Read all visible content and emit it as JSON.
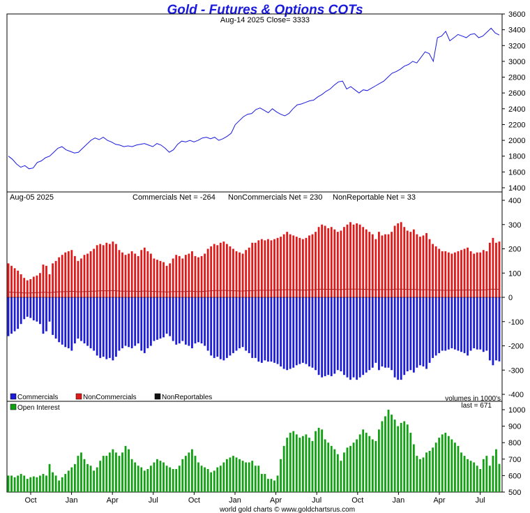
{
  "header": {
    "title": "Gold - Futures & Options COTs",
    "subtitle": "Aug-14  2025   Close= 3333",
    "footer": "world gold charts © www.goldchartsrus.com"
  },
  "colors": {
    "price_line": "#1a1adf",
    "commercials": "#1c1cd8",
    "noncommercials": "#e01818",
    "nonreportables": "#111111",
    "open_interest": "#11a011",
    "nonrep_line": "#b02020"
  },
  "chart_data": [
    {
      "type": "line",
      "panel": "price",
      "ylim": [
        1400,
        3600
      ],
      "y_ticks": [
        "1400",
        "1600",
        "1800",
        "2000",
        "2200",
        "2400",
        "2600",
        "2800",
        "3000",
        "3200",
        "3400",
        "3600"
      ],
      "x_ticks": [
        "Oct",
        "Jan",
        "Apr",
        "Jul",
        "Oct",
        "Jan",
        "Apr",
        "Jul",
        "Oct",
        "Jan",
        "Apr",
        "Jul"
      ],
      "grid": false,
      "series": [
        {
          "values": [
            1800,
            1760,
            1700,
            1660,
            1680,
            1640,
            1650,
            1720,
            1740,
            1780,
            1800,
            1850,
            1900,
            1920,
            1880,
            1860,
            1840,
            1850,
            1900,
            1950,
            2000,
            2030,
            2010,
            2040,
            2000,
            1980,
            1950,
            1940,
            1920,
            1930,
            1920,
            1940,
            1950,
            1960,
            1940,
            1920,
            1960,
            1940,
            1900,
            1850,
            1880,
            1950,
            1990,
            1980,
            2000,
            1980,
            2000,
            2030,
            2040,
            2020,
            2040,
            2000,
            2020,
            2050,
            2090,
            2200,
            2250,
            2300,
            2330,
            2340,
            2390,
            2410,
            2380,
            2350,
            2400,
            2360,
            2330,
            2310,
            2340,
            2400,
            2450,
            2460,
            2480,
            2500,
            2510,
            2550,
            2580,
            2620,
            2650,
            2700,
            2740,
            2750,
            2650,
            2680,
            2640,
            2600,
            2640,
            2630,
            2660,
            2690,
            2720,
            2750,
            2800,
            2850,
            2870,
            2900,
            2940,
            2960,
            3000,
            2980,
            3050,
            3120,
            3100,
            3000,
            3300,
            3320,
            3380,
            3260,
            3300,
            3340,
            3320,
            3300,
            3340,
            3350,
            3300,
            3320,
            3370,
            3420,
            3360,
            3333
          ]
        }
      ]
    },
    {
      "type": "bar",
      "panel": "cot",
      "date_label": "Aug-05  2025",
      "ylim": [
        -400,
        400
      ],
      "y_ticks": [
        "-400",
        "-300",
        "-200",
        "-100",
        "0",
        "100",
        "200",
        "300",
        "400"
      ],
      "x_ticks": [
        "Oct",
        "Jan",
        "Apr",
        "Jul",
        "Oct",
        "Jan",
        "Apr",
        "Jul",
        "Oct",
        "Jan",
        "Apr",
        "Jul"
      ],
      "net_labels": [
        "Commercials Net = -264",
        "NonCommercials Net = 230",
        "NonReportable Net = 33"
      ],
      "legend": [
        "Commercials",
        "NonCommercials",
        "NonReportables"
      ],
      "legend_placement": "bottom-left",
      "series": [
        {
          "name": "Commercials",
          "values": [
            -160,
            -150,
            -140,
            -130,
            -110,
            -90,
            -80,
            -85,
            -95,
            -100,
            -110,
            -150,
            -140,
            -100,
            -155,
            -170,
            -185,
            -195,
            -205,
            -210,
            -220,
            -190,
            -170,
            -180,
            -190,
            -200,
            -210,
            -220,
            -240,
            -250,
            -245,
            -255,
            -250,
            -260,
            -245,
            -220,
            -210,
            -200,
            -205,
            -210,
            -200,
            -190,
            -220,
            -230,
            -210,
            -200,
            -180,
            -175,
            -170,
            -165,
            -150,
            -160,
            -180,
            -195,
            -190,
            -180,
            -195,
            -200,
            -210,
            -190,
            -185,
            -190,
            -200,
            -220,
            -240,
            -250,
            -245,
            -255,
            -260,
            -250,
            -240,
            -230,
            -220,
            -210,
            -205,
            -220,
            -230,
            -250,
            -250,
            -265,
            -270,
            -260,
            -265,
            -265,
            -270,
            -275,
            -285,
            -295,
            -300,
            -295,
            -290,
            -280,
            -275,
            -270,
            -275,
            -285,
            -290,
            -300,
            -320,
            -330,
            -325,
            -320,
            -325,
            -315,
            -300,
            -305,
            -320,
            -330,
            -340,
            -330,
            -340,
            -330,
            -320,
            -310,
            -300,
            -290,
            -270,
            -300,
            -285,
            -290,
            -290,
            -300,
            -330,
            -340,
            -340,
            -320,
            -305,
            -300,
            -310,
            -290,
            -280,
            -285,
            -295,
            -270,
            -250,
            -240,
            -230,
            -220,
            -220,
            -215,
            -210,
            -215,
            -220,
            -225,
            -230,
            -240,
            -220,
            -210,
            -215,
            -215,
            -225,
            -220,
            -260,
            -280,
            -260,
            -264
          ]
        },
        {
          "name": "NonCommercials",
          "values": [
            140,
            130,
            120,
            110,
            95,
            80,
            70,
            75,
            85,
            90,
            100,
            135,
            130,
            95,
            140,
            150,
            165,
            175,
            185,
            190,
            195,
            170,
            150,
            160,
            175,
            180,
            190,
            200,
            215,
            220,
            215,
            225,
            220,
            230,
            220,
            195,
            185,
            175,
            180,
            190,
            180,
            170,
            195,
            205,
            190,
            180,
            160,
            155,
            150,
            145,
            130,
            140,
            160,
            175,
            170,
            160,
            175,
            180,
            190,
            170,
            165,
            170,
            180,
            200,
            210,
            220,
            215,
            225,
            230,
            220,
            210,
            200,
            190,
            185,
            180,
            195,
            205,
            225,
            225,
            235,
            240,
            235,
            240,
            235,
            240,
            245,
            250,
            260,
            270,
            260,
            255,
            250,
            245,
            240,
            245,
            255,
            260,
            270,
            290,
            300,
            295,
            285,
            290,
            280,
            270,
            275,
            290,
            300,
            310,
            300,
            305,
            300,
            290,
            280,
            270,
            260,
            240,
            270,
            255,
            260,
            260,
            270,
            295,
            305,
            310,
            290,
            275,
            270,
            280,
            260,
            250,
            255,
            265,
            240,
            220,
            210,
            200,
            190,
            190,
            185,
            180,
            185,
            190,
            195,
            200,
            205,
            190,
            180,
            185,
            185,
            195,
            190,
            225,
            245,
            225,
            230
          ]
        },
        {
          "name": "NonReportables",
          "values": [
            22,
            21,
            20,
            20,
            19,
            18,
            18,
            18,
            19,
            19,
            20,
            21,
            21,
            19,
            21,
            22,
            23,
            23,
            24,
            24,
            25,
            24,
            23,
            23,
            24,
            24,
            25,
            25,
            26,
            27,
            27,
            27,
            27,
            28,
            27,
            26,
            25,
            25,
            25,
            25,
            25,
            24,
            25,
            26,
            25,
            25,
            24,
            24,
            23,
            23,
            22,
            23,
            24,
            24,
            24,
            24,
            24,
            25,
            25,
            24,
            24,
            24,
            25,
            26,
            27,
            28,
            28,
            28,
            29,
            28,
            28,
            27,
            27,
            26,
            26,
            27,
            27,
            28,
            28,
            29,
            29,
            29,
            29,
            29,
            30,
            30,
            31,
            31,
            32,
            31,
            31,
            31,
            30,
            30,
            30,
            31,
            31,
            32,
            33,
            34,
            33,
            33,
            33,
            33,
            32,
            32,
            33,
            34,
            34,
            34,
            34,
            34,
            33,
            33,
            32,
            32,
            31,
            32,
            32,
            32,
            32,
            32,
            34,
            34,
            34,
            33,
            33,
            32,
            33,
            32,
            31,
            31,
            32,
            31,
            30,
            30,
            30,
            29,
            29,
            29,
            29,
            29,
            30,
            30,
            30,
            31,
            30,
            30,
            30,
            30,
            31,
            31,
            33,
            34,
            33,
            33
          ]
        }
      ]
    },
    {
      "type": "bar",
      "panel": "open_interest",
      "ylim": [
        500,
        1000
      ],
      "y_ticks": [
        "500",
        "600",
        "700",
        "800",
        "900",
        "1000"
      ],
      "x_ticks": [
        "Oct",
        "Jan",
        "Apr",
        "Jul",
        "Oct",
        "Jan",
        "Apr",
        "Jul",
        "Oct",
        "Jan",
        "Apr",
        "Jul"
      ],
      "units_note": "volumes in 1000's",
      "last_note": "last = 671",
      "legend": [
        "Open Interest"
      ],
      "legend_placement": "top-left",
      "series": [
        {
          "name": "Open Interest",
          "values": [
            600,
            600,
            590,
            600,
            610,
            600,
            580,
            590,
            595,
            590,
            600,
            610,
            600,
            670,
            620,
            600,
            570,
            590,
            610,
            630,
            650,
            670,
            720,
            740,
            700,
            670,
            660,
            630,
            650,
            690,
            720,
            720,
            740,
            760,
            740,
            720,
            740,
            780,
            760,
            700,
            680,
            660,
            650,
            630,
            640,
            660,
            680,
            700,
            690,
            680,
            660,
            650,
            640,
            640,
            660,
            700,
            720,
            740,
            760,
            720,
            680,
            660,
            650,
            640,
            620,
            630,
            650,
            660,
            680,
            700,
            710,
            720,
            710,
            700,
            690,
            680,
            680,
            690,
            660,
            660,
            610,
            610,
            580,
            580,
            570,
            600,
            700,
            780,
            830,
            860,
            870,
            850,
            830,
            840,
            850,
            830,
            810,
            870,
            890,
            880,
            820,
            800,
            780,
            760,
            730,
            690,
            740,
            770,
            780,
            800,
            820,
            850,
            880,
            860,
            840,
            820,
            810,
            880,
            930,
            960,
            1000,
            970,
            940,
            900,
            920,
            930,
            910,
            860,
            790,
            720,
            700,
            710,
            740,
            750,
            770,
            800,
            830,
            850,
            860,
            840,
            820,
            800,
            780,
            740,
            720,
            700,
            690,
            680,
            660,
            640,
            700,
            720,
            660,
            720,
            760,
            671
          ]
        }
      ]
    }
  ]
}
